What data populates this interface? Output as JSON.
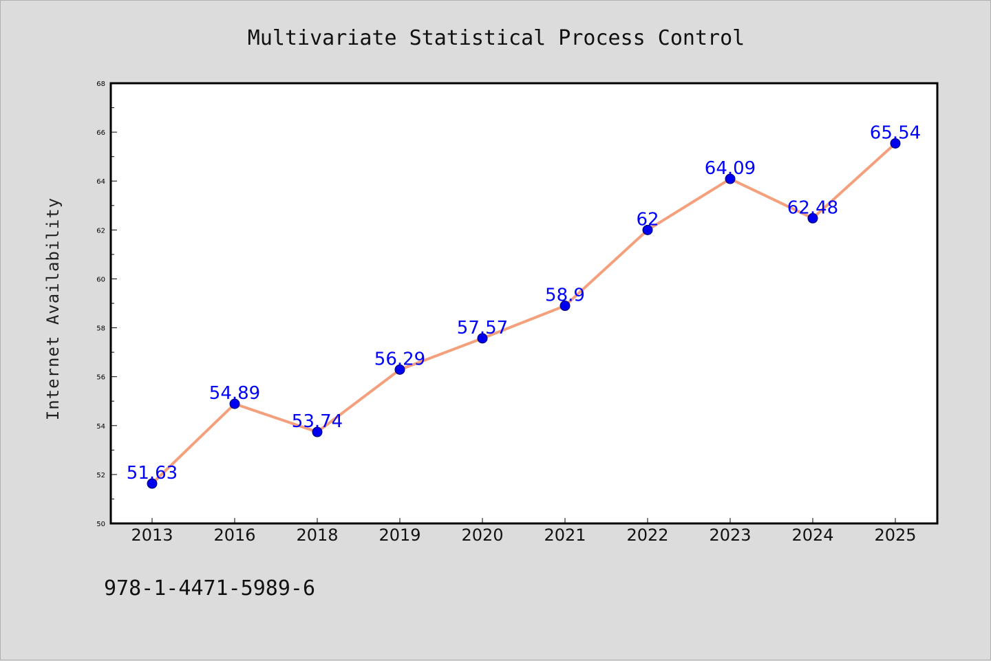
{
  "chart_data": {
    "type": "line",
    "title": "Multivariate Statistical Process Control",
    "ylabel": "Internet Availability",
    "xlabel": "",
    "categories": [
      "2013",
      "2016",
      "2018",
      "2019",
      "2020",
      "2021",
      "2022",
      "2023",
      "2024",
      "2025"
    ],
    "series": [
      {
        "values": [
          51.63,
          54.89,
          53.74,
          56.29,
          57.57,
          58.9,
          62,
          64.09,
          62.48,
          65.54
        ],
        "labels": [
          "51.63",
          "54.89",
          "53.74",
          "56.29",
          "57.57",
          "58.9",
          "62",
          "64.09",
          "62.48",
          "65.54"
        ],
        "line_color": "#f4a07c",
        "marker_color": "#0000ee"
      }
    ],
    "ylim": [
      50,
      68
    ],
    "yticks": [
      "50",
      "52",
      "54",
      "56",
      "58",
      "60",
      "62",
      "64",
      "66",
      "68"
    ],
    "grid": false,
    "legend": "none"
  },
  "footer": {
    "text": "978-1-4471-5989-6"
  },
  "colors": {
    "background": "#dcdcdc",
    "plot_background": "#ffffff",
    "data_label": "#0000ff"
  }
}
